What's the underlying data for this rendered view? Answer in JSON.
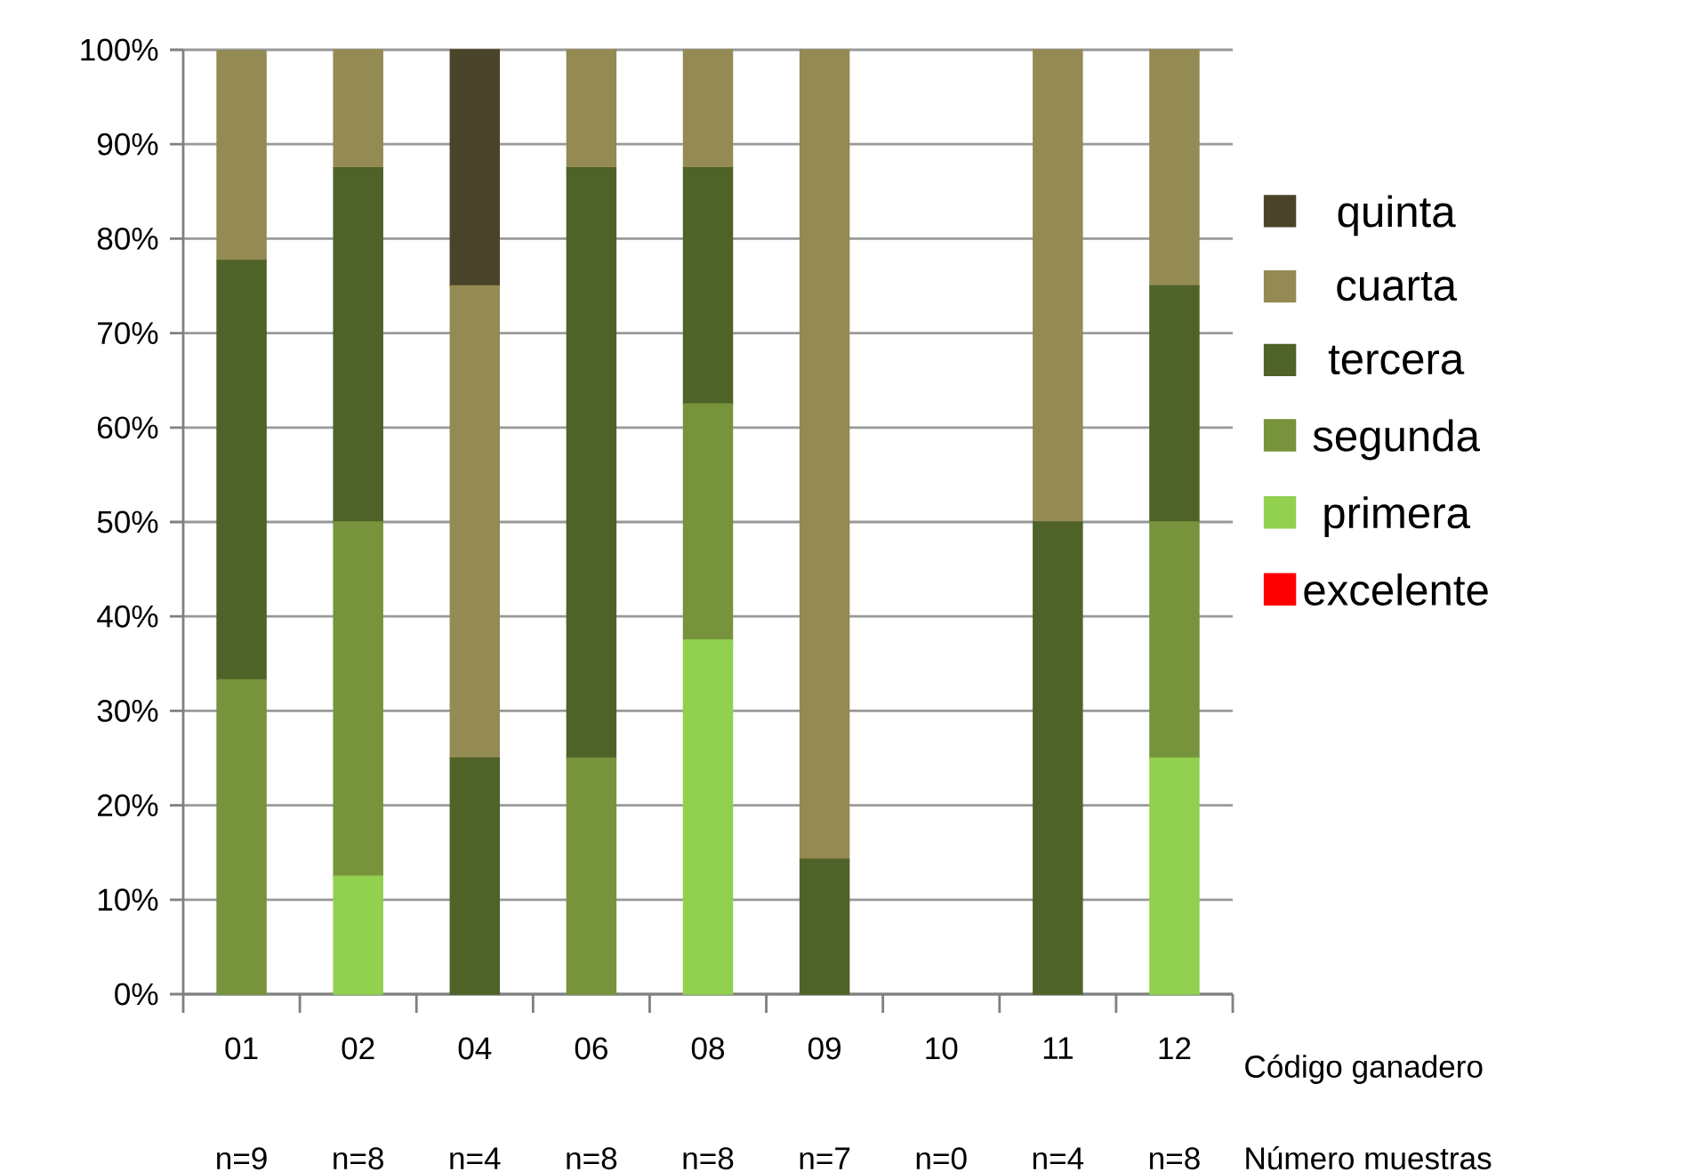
{
  "chart_data": {
    "type": "bar",
    "stacked": true,
    "categories": [
      "01",
      "02",
      "04",
      "06",
      "08",
      "09",
      "10",
      "11",
      "12"
    ],
    "xlabel": "Código ganadero",
    "series": [
      {
        "name": "excelente",
        "color": "#ff0000",
        "values": [
          0,
          0,
          0,
          0,
          0,
          0,
          0,
          0,
          0
        ]
      },
      {
        "name": "primera",
        "color": "#92d050",
        "values": [
          0,
          12.5,
          0,
          0,
          37.5,
          0,
          0,
          0,
          25
        ]
      },
      {
        "name": "segunda",
        "color": "#77933c",
        "values": [
          33.3,
          37.5,
          0,
          25,
          25,
          0,
          0,
          0,
          25
        ]
      },
      {
        "name": "tercera",
        "color": "#4f6228",
        "values": [
          44.4,
          37.5,
          25,
          62.5,
          25,
          14.3,
          0,
          50,
          25
        ]
      },
      {
        "name": "cuarta",
        "color": "#948a54",
        "values": [
          22.2,
          12.5,
          50,
          12.5,
          12.5,
          85.7,
          0,
          50,
          25
        ]
      },
      {
        "name": "quinta",
        "color": "#494429",
        "values": [
          0,
          0,
          25,
          0,
          0,
          0,
          0,
          0,
          0
        ]
      }
    ],
    "ylim": [
      0,
      100
    ],
    "yticks": [
      {
        "value": 0,
        "label": "0%"
      },
      {
        "value": 10,
        "label": "10%"
      },
      {
        "value": 20,
        "label": "20%"
      },
      {
        "value": 30,
        "label": "30%"
      },
      {
        "value": 40,
        "label": "40%"
      },
      {
        "value": 50,
        "label": "50%"
      },
      {
        "value": 60,
        "label": "60%"
      },
      {
        "value": 70,
        "label": "70%"
      },
      {
        "value": 80,
        "label": "80%"
      },
      {
        "value": 90,
        "label": "90%"
      },
      {
        "value": 100,
        "label": "100%"
      }
    ],
    "grid": "y",
    "legend": "right",
    "annotations": [
      "n=9",
      "n=8",
      "n=4",
      "n=8",
      "n=8",
      "n=7",
      "n=0",
      "n=4",
      "n=8",
      "Número muestras"
    ]
  }
}
